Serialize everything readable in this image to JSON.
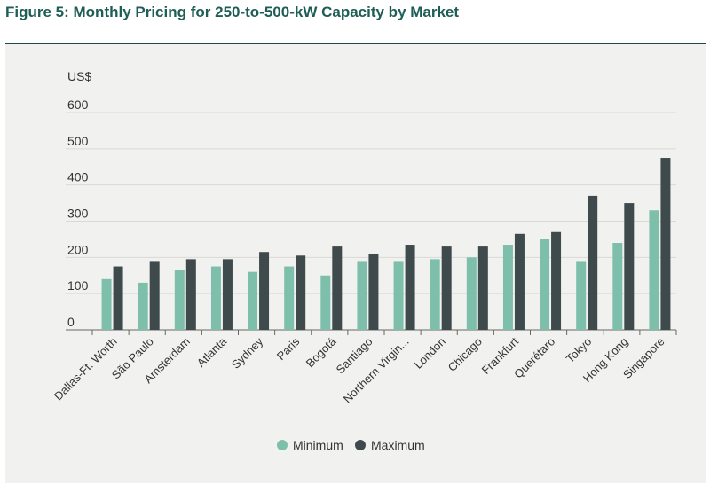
{
  "figure_title": "Figure 5: Monthly Pricing for 250-to-500-kW Capacity by Market",
  "chart_data": {
    "type": "bar",
    "title": "Figure 5: Monthly Pricing for 250-to-500-kW Capacity by Market",
    "ylabel": "US$",
    "xlabel": "",
    "ylim": [
      0,
      600
    ],
    "yticks": [
      0,
      100,
      200,
      300,
      400,
      500,
      600
    ],
    "grid": true,
    "legend_position": "bottom-center",
    "categories": [
      "Dallas-Ft. Worth",
      "São Paulo",
      "Amsterdam",
      "Atlanta",
      "Sydney",
      "Paris",
      "Bogotá",
      "Santiago",
      "Northern Virgin...",
      "London",
      "Chicago",
      "Frankfurt",
      "Querétaro",
      "Tokyo",
      "Hong Kong",
      "Singapore"
    ],
    "series": [
      {
        "name": "Minimum",
        "color": "#7dbfaa",
        "values": [
          140,
          130,
          165,
          175,
          160,
          175,
          150,
          190,
          190,
          195,
          200,
          235,
          250,
          190,
          240,
          330
        ]
      },
      {
        "name": "Maximum",
        "color": "#3f4a4c",
        "values": [
          175,
          190,
          195,
          195,
          215,
          205,
          230,
          210,
          235,
          230,
          230,
          265,
          270,
          370,
          350,
          475
        ]
      }
    ]
  }
}
